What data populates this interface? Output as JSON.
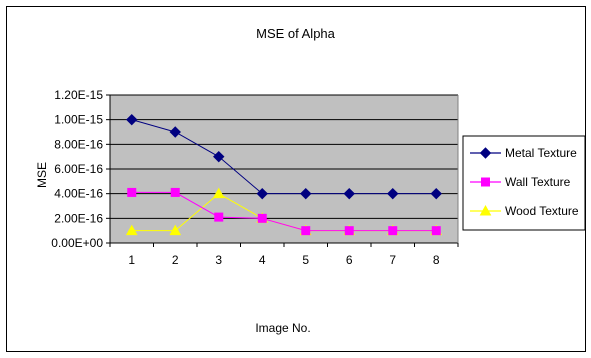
{
  "chart_data": {
    "type": "line",
    "title": "MSE of Alpha",
    "xlabel": "Image No.",
    "ylabel": "MSE",
    "x": [
      1,
      2,
      3,
      4,
      5,
      6,
      7,
      8
    ],
    "ylim": [
      0,
      1.2e-15
    ],
    "ytick_values": [
      0,
      2e-16,
      4e-16,
      6e-16,
      8e-16,
      1e-15,
      1.2e-15
    ],
    "ytick_labels": [
      "0.00E+00",
      "2.00E-16",
      "4.00E-16",
      "6.00E-16",
      "8.00E-16",
      "1.00E-15",
      "1.20E-15"
    ],
    "xtick_labels": [
      "1",
      "2",
      "3",
      "4",
      "5",
      "6",
      "7",
      "8"
    ],
    "grid": true,
    "legend_position": "right",
    "plot_background": "#c0c0c0",
    "series": [
      {
        "name": "Metal Texture",
        "color": "#000080",
        "marker": "diamond",
        "values": [
          1e-15,
          9e-16,
          7e-16,
          4e-16,
          4e-16,
          4e-16,
          4e-16,
          4e-16
        ]
      },
      {
        "name": "Wall Texture",
        "color": "#ff00ff",
        "marker": "square",
        "values": [
          4.1e-16,
          4.1e-16,
          2.1e-16,
          2e-16,
          1e-16,
          1e-16,
          1e-16,
          1e-16
        ]
      },
      {
        "name": "Wood Texture",
        "color": "#ffff00",
        "marker": "triangle",
        "values": [
          1e-16,
          1e-16,
          4e-16,
          2e-16,
          1e-16,
          1e-16,
          1e-16,
          1e-16
        ]
      }
    ]
  }
}
